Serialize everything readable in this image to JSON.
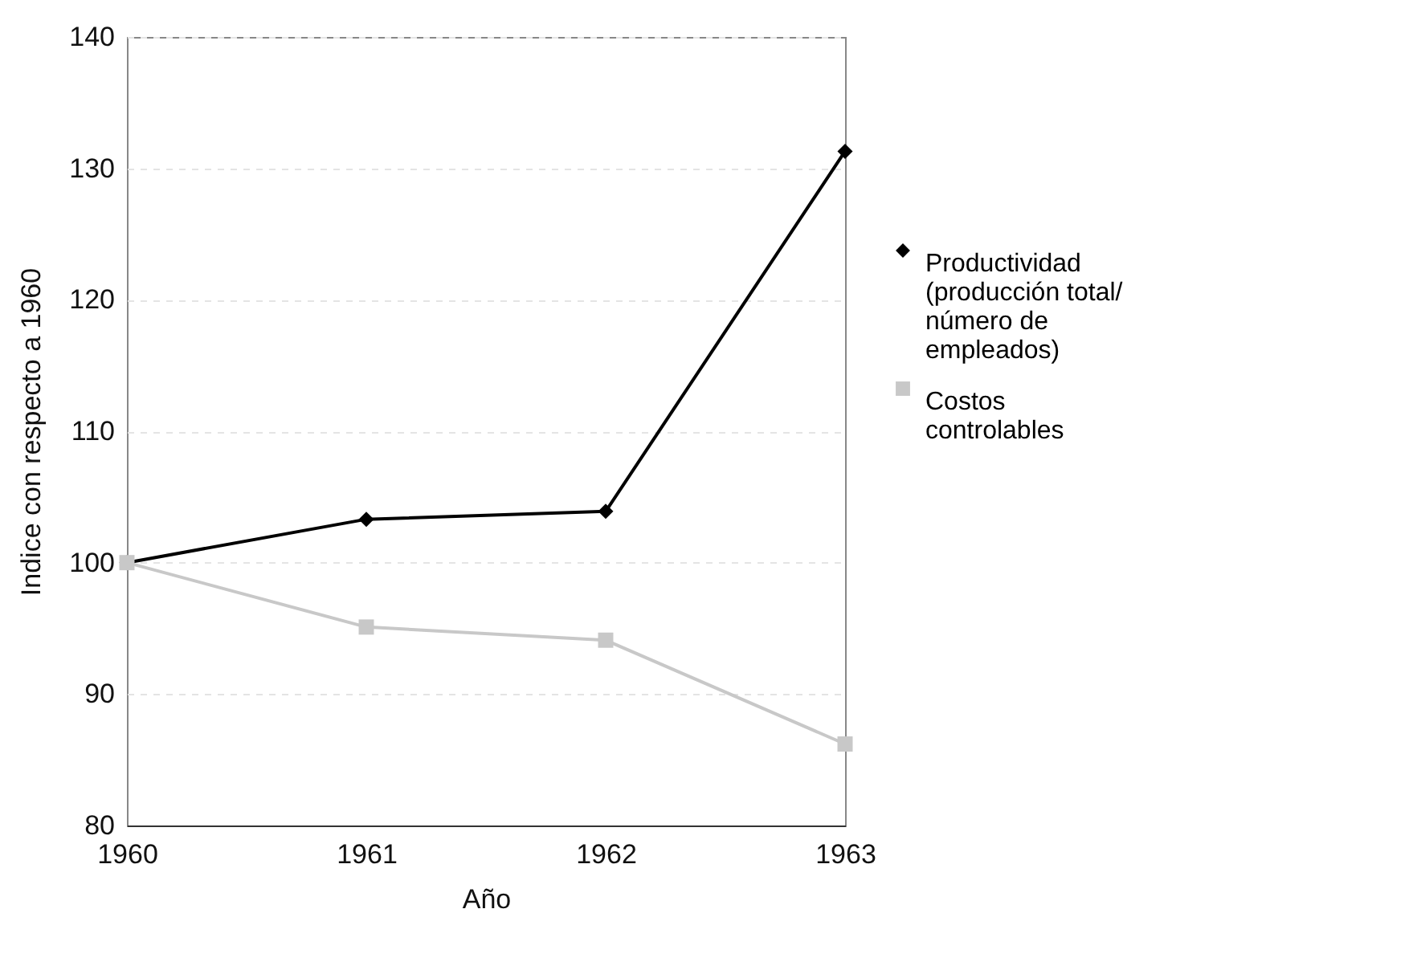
{
  "chart_data": {
    "type": "line",
    "xlabel": "Año",
    "ylabel": "Indice con respecto a 1960",
    "x": [
      1960,
      1961,
      1962,
      1963
    ],
    "series": [
      {
        "name": "Productividad (producción total/ número de empleados)",
        "color": "#000000",
        "marker": "diamond",
        "values": [
          100,
          103.3,
          103.9,
          131.3
        ]
      },
      {
        "name": "Costos controlables",
        "color": "#c8c8c8",
        "marker": "square",
        "values": [
          100,
          95.1,
          94.1,
          86.2
        ]
      }
    ],
    "xlim": [
      1960,
      1963
    ],
    "xticks": [
      1960,
      1961,
      1962,
      1963
    ],
    "ylim": [
      80,
      140
    ],
    "yticks": [
      80,
      90,
      100,
      110,
      120,
      130,
      140
    ],
    "grid": "y",
    "legend": "right"
  }
}
